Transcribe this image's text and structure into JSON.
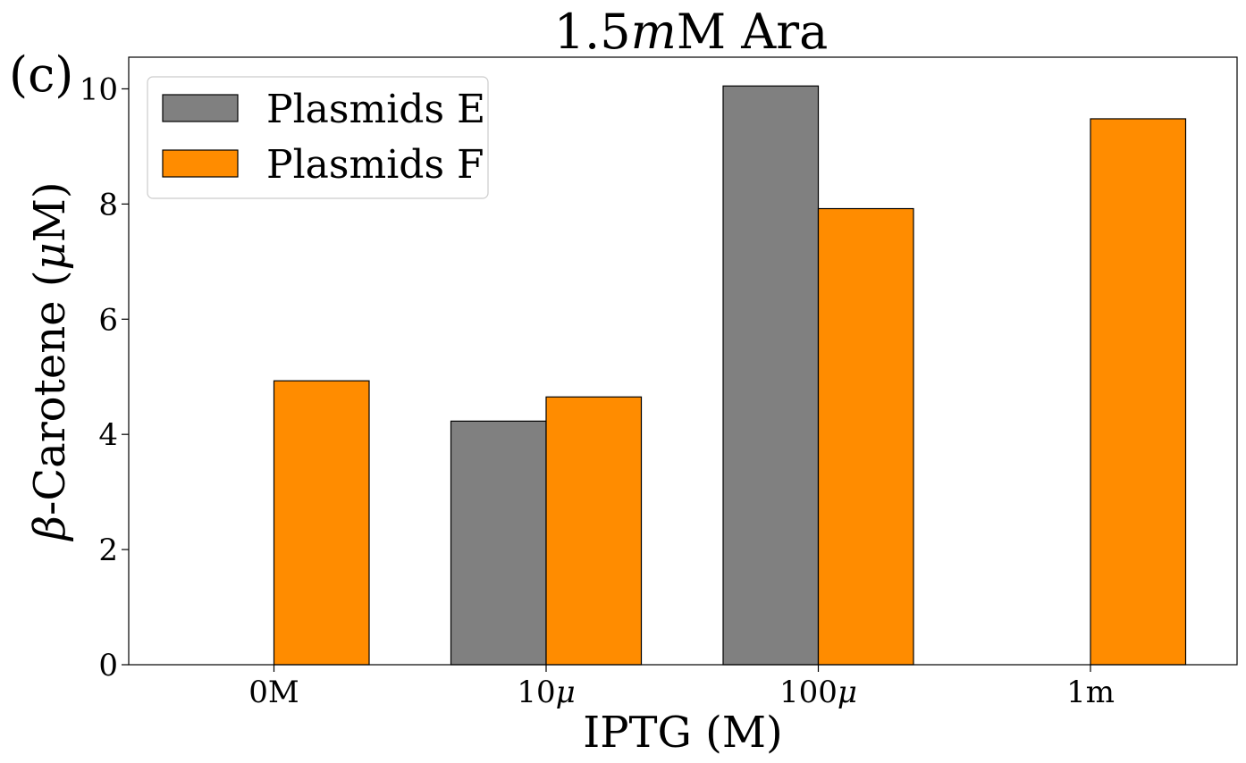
{
  "panel_label": "(c)",
  "chart_data": {
    "type": "bar",
    "title": "1.5mM Ara",
    "xlabel": "IPTG (M)",
    "ylabel": "β-Carotene (μM)",
    "categories": [
      "0M",
      "10μ",
      "100μ",
      "1m"
    ],
    "series": [
      {
        "name": "Plasmids E",
        "color": "#808080",
        "values": [
          0.0,
          4.23,
          10.05,
          0.0
        ]
      },
      {
        "name": "Plasmids F",
        "color": "#ff8c00",
        "values": [
          4.93,
          4.65,
          7.92,
          9.48
        ]
      }
    ],
    "ylim": [
      0,
      10.55
    ],
    "yticks": [
      0,
      2,
      4,
      6,
      8,
      10
    ],
    "grid": false,
    "legend_position": "top-left"
  }
}
